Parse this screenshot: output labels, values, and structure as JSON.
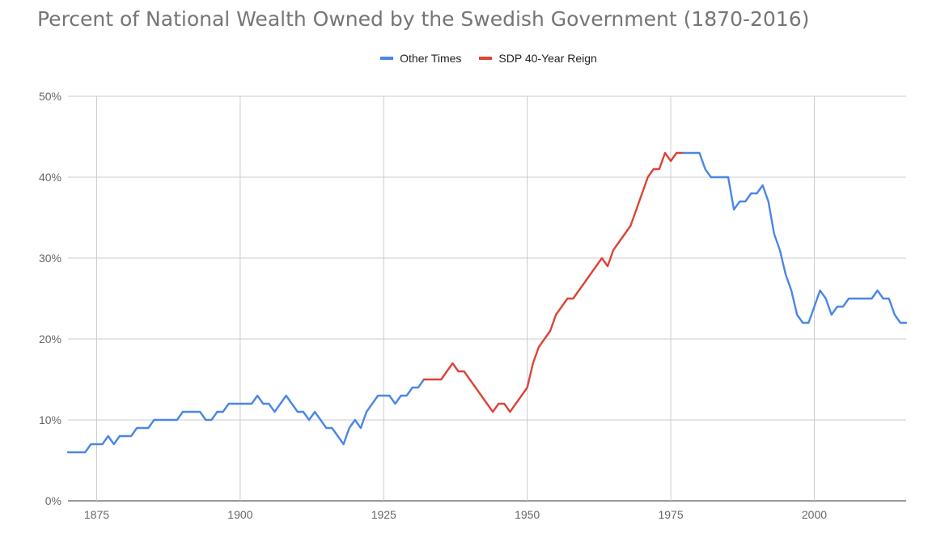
{
  "chart_data": {
    "type": "line",
    "title": "Percent of National Wealth Owned by the Swedish Government (1870-2016)",
    "xlabel": "",
    "ylabel": "",
    "xlim": [
      1870,
      2016
    ],
    "ylim": [
      0,
      50
    ],
    "x_ticks": [
      1875,
      1900,
      1925,
      1950,
      1975,
      2000
    ],
    "y_ticks": [
      0,
      10,
      20,
      30,
      40,
      50
    ],
    "y_tick_labels": [
      "0%",
      "10%",
      "20%",
      "30%",
      "40%",
      "50%"
    ],
    "grid": true,
    "legend_position": "top-center",
    "series": [
      {
        "name": "Other Times",
        "color": "#4a86e8",
        "segments": [
          [
            [
              1870,
              6
            ],
            [
              1871,
              6
            ],
            [
              1872,
              6
            ],
            [
              1873,
              6
            ],
            [
              1874,
              7
            ],
            [
              1875,
              7
            ],
            [
              1876,
              7
            ],
            [
              1877,
              8
            ],
            [
              1878,
              7
            ],
            [
              1879,
              8
            ],
            [
              1880,
              8
            ],
            [
              1881,
              8
            ],
            [
              1882,
              9
            ],
            [
              1883,
              9
            ],
            [
              1884,
              9
            ],
            [
              1885,
              10
            ],
            [
              1886,
              10
            ],
            [
              1887,
              10
            ],
            [
              1888,
              10
            ],
            [
              1889,
              10
            ],
            [
              1890,
              11
            ],
            [
              1891,
              11
            ],
            [
              1892,
              11
            ],
            [
              1893,
              11
            ],
            [
              1894,
              10
            ],
            [
              1895,
              10
            ],
            [
              1896,
              11
            ],
            [
              1897,
              11
            ],
            [
              1898,
              12
            ],
            [
              1899,
              12
            ],
            [
              1900,
              12
            ],
            [
              1901,
              12
            ],
            [
              1902,
              12
            ],
            [
              1903,
              13
            ],
            [
              1904,
              12
            ],
            [
              1905,
              12
            ],
            [
              1906,
              11
            ],
            [
              1907,
              12
            ],
            [
              1908,
              13
            ],
            [
              1909,
              12
            ],
            [
              1910,
              11
            ],
            [
              1911,
              11
            ],
            [
              1912,
              10
            ],
            [
              1913,
              11
            ],
            [
              1914,
              10
            ],
            [
              1915,
              9
            ],
            [
              1916,
              9
            ],
            [
              1917,
              8
            ],
            [
              1918,
              7
            ],
            [
              1919,
              9
            ],
            [
              1920,
              10
            ],
            [
              1921,
              9
            ],
            [
              1922,
              11
            ],
            [
              1923,
              12
            ],
            [
              1924,
              13
            ],
            [
              1925,
              13
            ],
            [
              1926,
              13
            ],
            [
              1927,
              12
            ],
            [
              1928,
              13
            ],
            [
              1929,
              13
            ],
            [
              1930,
              14
            ],
            [
              1931,
              14
            ],
            [
              1932,
              15
            ]
          ],
          [
            [
              1977,
              43
            ],
            [
              1978,
              43
            ],
            [
              1979,
              43
            ],
            [
              1980,
              43
            ],
            [
              1981,
              41
            ],
            [
              1982,
              40
            ],
            [
              1983,
              40
            ],
            [
              1984,
              40
            ],
            [
              1985,
              40
            ],
            [
              1986,
              36
            ],
            [
              1987,
              37
            ],
            [
              1988,
              37
            ],
            [
              1989,
              38
            ],
            [
              1990,
              38
            ],
            [
              1991,
              39
            ],
            [
              1992,
              37
            ],
            [
              1993,
              33
            ],
            [
              1994,
              31
            ],
            [
              1995,
              28
            ],
            [
              1996,
              26
            ],
            [
              1997,
              23
            ],
            [
              1998,
              22
            ],
            [
              1999,
              22
            ],
            [
              2000,
              24
            ],
            [
              2001,
              26
            ],
            [
              2002,
              25
            ],
            [
              2003,
              23
            ],
            [
              2004,
              24
            ],
            [
              2005,
              24
            ],
            [
              2006,
              25
            ],
            [
              2007,
              25
            ],
            [
              2008,
              25
            ],
            [
              2009,
              25
            ],
            [
              2010,
              25
            ],
            [
              2011,
              26
            ],
            [
              2012,
              25
            ],
            [
              2013,
              25
            ],
            [
              2014,
              23
            ],
            [
              2015,
              22
            ],
            [
              2016,
              22
            ]
          ]
        ]
      },
      {
        "name": "SDP 40-Year Reign",
        "color": "#db4437",
        "segments": [
          [
            [
              1932,
              15
            ],
            [
              1933,
              15
            ],
            [
              1934,
              15
            ],
            [
              1935,
              15
            ],
            [
              1936,
              16
            ],
            [
              1937,
              17
            ],
            [
              1938,
              16
            ],
            [
              1939,
              16
            ],
            [
              1940,
              15
            ],
            [
              1941,
              14
            ],
            [
              1942,
              13
            ],
            [
              1943,
              12
            ],
            [
              1944,
              11
            ],
            [
              1945,
              12
            ],
            [
              1946,
              12
            ],
            [
              1947,
              11
            ],
            [
              1948,
              12
            ],
            [
              1949,
              13
            ],
            [
              1950,
              14
            ],
            [
              1951,
              17
            ],
            [
              1952,
              19
            ],
            [
              1953,
              20
            ],
            [
              1954,
              21
            ],
            [
              1955,
              23
            ],
            [
              1956,
              24
            ],
            [
              1957,
              25
            ],
            [
              1958,
              25
            ],
            [
              1959,
              26
            ],
            [
              1960,
              27
            ],
            [
              1961,
              28
            ],
            [
              1962,
              29
            ],
            [
              1963,
              30
            ],
            [
              1964,
              29
            ],
            [
              1965,
              31
            ],
            [
              1966,
              32
            ],
            [
              1967,
              33
            ],
            [
              1968,
              34
            ],
            [
              1969,
              36
            ],
            [
              1970,
              38
            ],
            [
              1971,
              40
            ],
            [
              1972,
              41
            ],
            [
              1973,
              41
            ],
            [
              1974,
              43
            ],
            [
              1975,
              42
            ],
            [
              1976,
              43
            ],
            [
              1977,
              43
            ]
          ]
        ]
      }
    ]
  }
}
